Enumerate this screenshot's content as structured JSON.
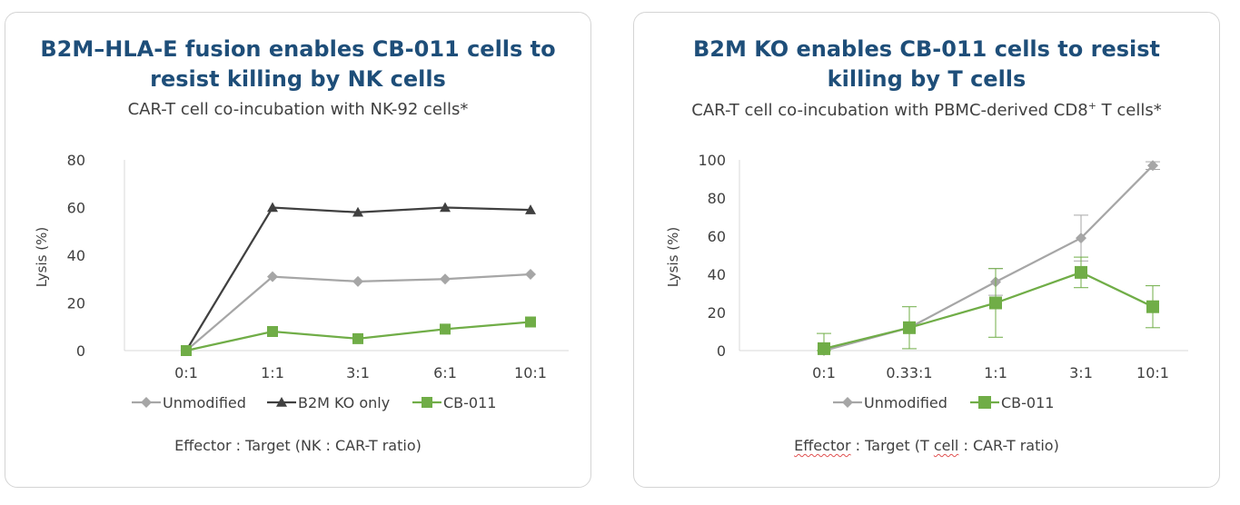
{
  "charts": [
    {
      "title": "B2M–HLA-E fusion enables CB-011 cells to\nresist killing by NK cells",
      "subtitle": "CAR-T cell co-incubation with NK-92 cells*",
      "ylabel": "Lysis (%)",
      "xlabel": "Effector : Target (NK : CAR-T ratio)"
    },
    {
      "title": "B2M KO enables CB-011 cells to resist\nkilling by T cells",
      "subtitle_main": "CAR-T cell co-incubation with PBMC-derived CD8",
      "subtitle_sup": "+",
      "subtitle_end": " T cells*",
      "ylabel": "Lysis (%)",
      "xlabel_word1": "Effector",
      "xlabel_mid": " : Target (T ",
      "xlabel_word2": "cell",
      "xlabel_end": " : CAR-T ratio)"
    }
  ],
  "chart_data": [
    {
      "type": "line",
      "title": "B2M–HLA-E fusion enables CB-011 cells to resist killing by NK cells",
      "categories": [
        "0:1",
        "1:1",
        "3:1",
        "6:1",
        "10:1"
      ],
      "ylim": [
        0,
        80
      ],
      "yticks": [
        0,
        20,
        40,
        60,
        80
      ],
      "ylabel": "Lysis (%)",
      "xlabel": "Effector : Target (NK : CAR-T ratio)",
      "series": [
        {
          "name": "Unmodified",
          "values": [
            0,
            31,
            29,
            30,
            32
          ],
          "color": "#a6a6a6",
          "marker": "diamond"
        },
        {
          "name": "B2M KO only",
          "values": [
            0,
            60,
            58,
            60,
            59
          ],
          "color": "#404040",
          "marker": "triangle"
        },
        {
          "name": "CB-011",
          "values": [
            0,
            8,
            5,
            9,
            12
          ],
          "color": "#70ad47",
          "marker": "square"
        }
      ]
    },
    {
      "type": "line",
      "title": "B2M KO enables CB-011 cells to resist killing by T cells",
      "categories": [
        "0:1",
        "0.33:1",
        "1:1",
        "3:1",
        "10:1"
      ],
      "ylim": [
        0,
        100
      ],
      "yticks": [
        0,
        20,
        40,
        60,
        80,
        100
      ],
      "ylabel": "Lysis (%)",
      "xlabel": "Effector : Target (T cell : CAR-T ratio)",
      "series": [
        {
          "name": "Unmodified",
          "values": [
            0,
            12,
            36,
            59,
            97
          ],
          "errors": [
            0,
            0,
            7,
            12,
            2
          ],
          "color": "#a6a6a6",
          "marker": "diamond"
        },
        {
          "name": "CB-011",
          "values": [
            1,
            12,
            25,
            41,
            23
          ],
          "errors": [
            8,
            11,
            18,
            8,
            11
          ],
          "color": "#70ad47",
          "marker": "square"
        }
      ]
    }
  ]
}
